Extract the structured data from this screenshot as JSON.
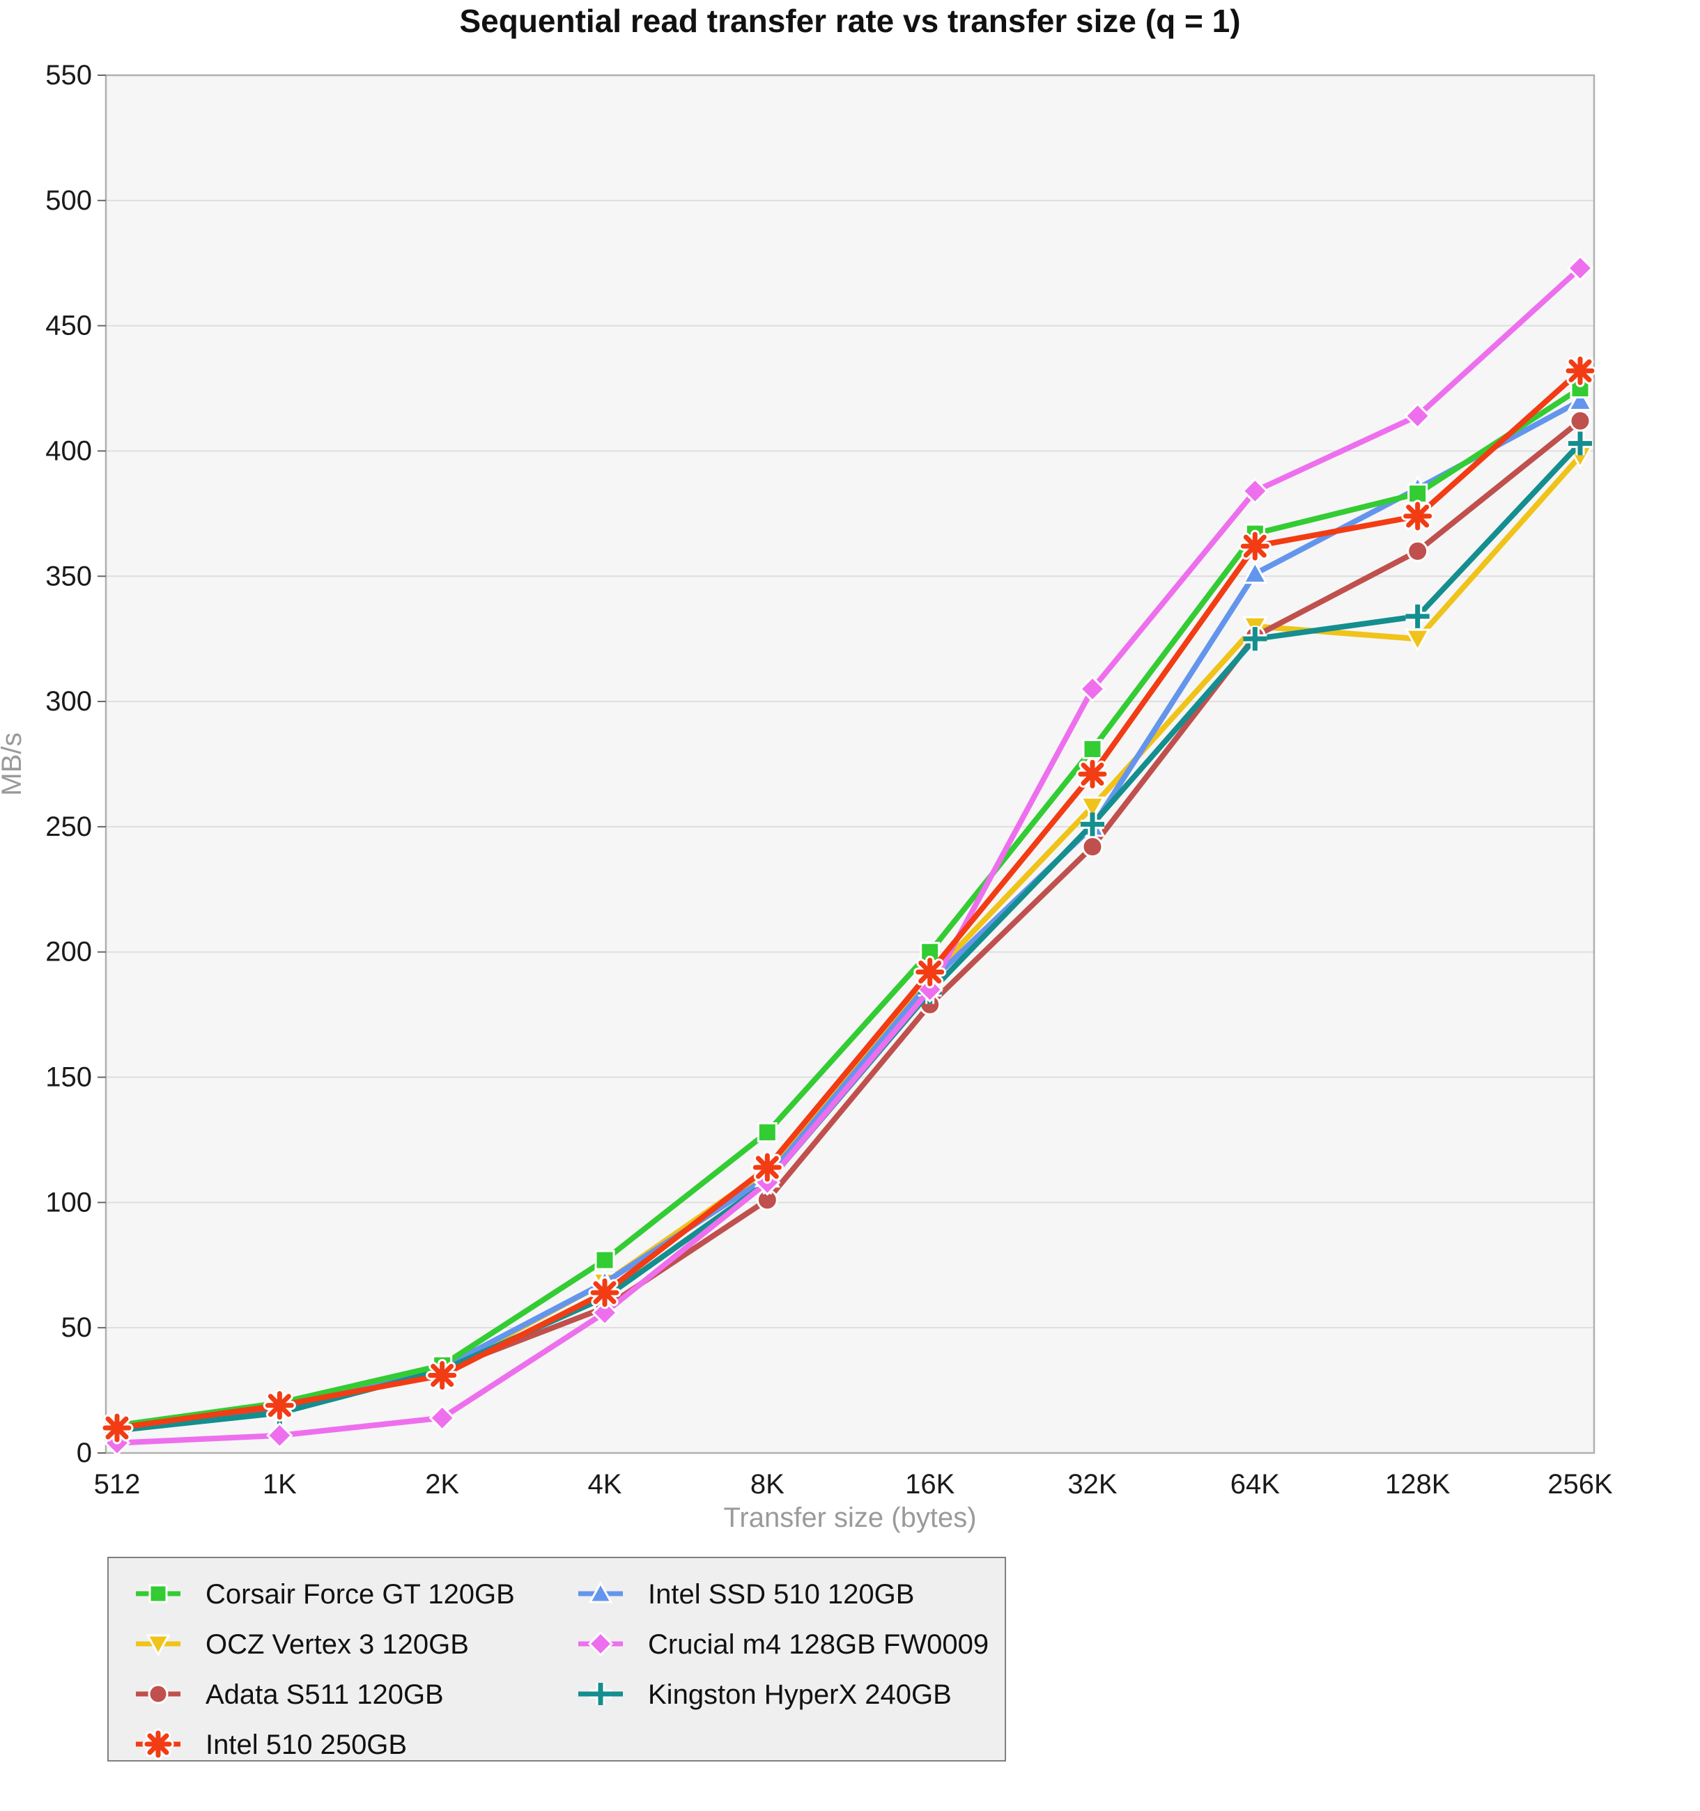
{
  "chart_data": {
    "type": "line",
    "title": "Sequential read transfer rate vs transfer size (q = 1)",
    "xlabel": "Transfer size (bytes)",
    "ylabel": "MB/s",
    "ylim": [
      0,
      550
    ],
    "yticks": [
      0,
      50,
      100,
      150,
      200,
      250,
      300,
      350,
      400,
      450,
      500,
      550
    ],
    "grid": true,
    "legend_position": "bottom",
    "plot_bg_color": "#f6f6f6",
    "grid_color": "#dedede",
    "border_color": "#b0b0b0",
    "legend_bg_color": "#efefef",
    "legend_border_color": "#7f7f7f",
    "categories": [
      "512",
      "1K",
      "2K",
      "4K",
      "8K",
      "16K",
      "32K",
      "64K",
      "128K",
      "256K"
    ],
    "series": [
      {
        "name": "Corsair Force GT 120GB",
        "color": "#33cc33",
        "marker": "square",
        "values": [
          11,
          20,
          35,
          77,
          128,
          200,
          281,
          367,
          383,
          425
        ]
      },
      {
        "name": "OCZ Vertex 3 120GB",
        "color": "#efc319",
        "marker": "triangle-down",
        "values": [
          10,
          19,
          33,
          68,
          113,
          190,
          258,
          330,
          325,
          398
        ]
      },
      {
        "name": "Adata S511 120GB",
        "color": "#c0504d",
        "marker": "circle",
        "values": [
          10,
          18,
          33,
          58,
          101,
          179,
          242,
          326,
          360,
          412
        ]
      },
      {
        "name": "Intel 510 250GB",
        "color": "#f23c14",
        "marker": "x",
        "values": [
          10,
          19,
          31,
          64,
          114,
          192,
          271,
          362,
          374,
          432
        ]
      },
      {
        "name": "Intel SSD 510 120GB",
        "color": "#6495ed",
        "marker": "triangle-up",
        "values": [
          10,
          19,
          34,
          68,
          110,
          188,
          250,
          351,
          385,
          420
        ]
      },
      {
        "name": "Crucial m4 128GB FW0009",
        "color": "#ee6fee",
        "marker": "diamond",
        "values": [
          4,
          7,
          14,
          56,
          108,
          185,
          305,
          384,
          414,
          473
        ]
      },
      {
        "name": "Kingston HyperX 240GB",
        "color": "#148e8e",
        "marker": "plus",
        "values": [
          9,
          16,
          33,
          62,
          108,
          184,
          251,
          325,
          334,
          403
        ]
      }
    ]
  }
}
